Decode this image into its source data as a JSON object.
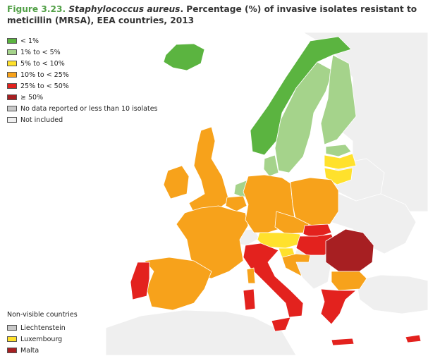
{
  "title": {
    "figure_no": "Figure 3.23.",
    "species": "Staphylococcus aureus",
    "rest": ". Percentage (%) of invasive isolates resistant to meticillin (MRSA), EEA countries, 2013"
  },
  "colors": {
    "sea": "#ffffff",
    "background_land": "#dcdcdc",
    "land_stroke": "#ffffff"
  },
  "legend": {
    "items": [
      {
        "label": "< 1%",
        "color": "#5bb440"
      },
      {
        "label": "1% to < 5%",
        "color": "#a5d38b"
      },
      {
        "label": "5% to < 10%",
        "color": "#ffe12c"
      },
      {
        "label": "10% to < 25%",
        "color": "#f7a21b"
      },
      {
        "label": "25% to < 50%",
        "color": "#e3221e"
      },
      {
        "label": "≥ 50%",
        "color": "#a71f22"
      },
      {
        "label": "No data reported or less than 10 isolates",
        "color": "#c8c8c8"
      },
      {
        "label": "Not included",
        "color": "#efefef"
      }
    ]
  },
  "non_visible": {
    "title": "Non-visible countries",
    "items": [
      {
        "label": "Liechtenstein",
        "color": "#c8c8c8"
      },
      {
        "label": "Luxembourg",
        "color": "#ffe12c"
      },
      {
        "label": "Malta",
        "color": "#a71f22"
      }
    ]
  },
  "map": {
    "countries": [
      {
        "id": "iceland",
        "category": "< 1%"
      },
      {
        "id": "norway",
        "category": "< 1%"
      },
      {
        "id": "sweden",
        "category": "1% to < 5%"
      },
      {
        "id": "finland",
        "category": "1% to < 5%"
      },
      {
        "id": "denmark",
        "category": "1% to < 5%"
      },
      {
        "id": "netherlands",
        "category": "1% to < 5%"
      },
      {
        "id": "estonia",
        "category": "1% to < 5%"
      },
      {
        "id": "latvia",
        "category": "5% to < 10%"
      },
      {
        "id": "lithuania",
        "category": "5% to < 10%"
      },
      {
        "id": "austria",
        "category": "5% to < 10%"
      },
      {
        "id": "slovenia",
        "category": "5% to < 10%"
      },
      {
        "id": "united-kingdom",
        "category": "10% to < 25%"
      },
      {
        "id": "ireland",
        "category": "10% to < 25%"
      },
      {
        "id": "france",
        "category": "10% to < 25%"
      },
      {
        "id": "spain",
        "category": "10% to < 25%"
      },
      {
        "id": "belgium",
        "category": "10% to < 25%"
      },
      {
        "id": "germany",
        "category": "10% to < 25%"
      },
      {
        "id": "poland",
        "category": "10% to < 25%"
      },
      {
        "id": "czech-republic",
        "category": "10% to < 25%"
      },
      {
        "id": "croatia",
        "category": "10% to < 25%"
      },
      {
        "id": "bulgaria",
        "category": "10% to < 25%"
      },
      {
        "id": "hungary",
        "category": "25% to < 50%"
      },
      {
        "id": "slovakia",
        "category": "25% to < 50%"
      },
      {
        "id": "portugal",
        "category": "25% to < 50%"
      },
      {
        "id": "italy",
        "category": "25% to < 50%"
      },
      {
        "id": "sicily",
        "category": "25% to < 50%"
      },
      {
        "id": "sardinia",
        "category": "25% to < 50%"
      },
      {
        "id": "corsica",
        "category": "10% to < 25%"
      },
      {
        "id": "greece",
        "category": "25% to < 50%"
      },
      {
        "id": "crete",
        "category": "25% to < 50%"
      },
      {
        "id": "cyprus",
        "category": "25% to < 50%"
      },
      {
        "id": "romania",
        "category": "≥ 50%"
      },
      {
        "id": "switzerland",
        "category": "Not included"
      },
      {
        "id": "western-balkans",
        "category": "Not included"
      },
      {
        "id": "belarus",
        "category": "Not included"
      },
      {
        "id": "ukraine",
        "category": "Not included"
      },
      {
        "id": "russia",
        "category": "Not included"
      },
      {
        "id": "north-africa",
        "category": "Not included"
      },
      {
        "id": "turkey",
        "category": "Not included"
      }
    ]
  }
}
